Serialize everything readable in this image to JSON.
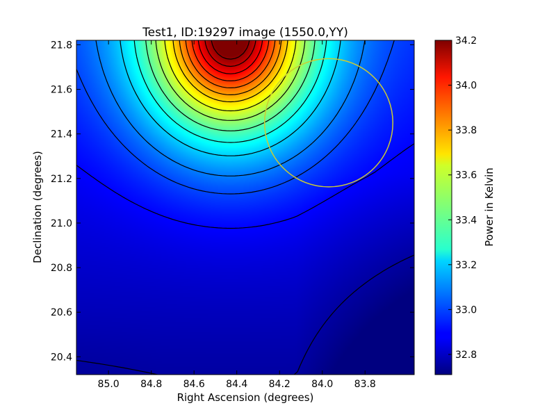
{
  "chart_data": {
    "type": "heatmap",
    "title": "Test1, ID:19297 image (1550.0,YY)",
    "xlabel": "Right Ascension (degrees)",
    "ylabel": "Declination (degrees)",
    "colorbar_label": "Power in Kelvin",
    "colormap": "jet",
    "xlim": [
      85.15,
      83.57
    ],
    "ylim": [
      20.32,
      21.82
    ],
    "clim": [
      32.71,
      34.2
    ],
    "x_ticks": [
      85.0,
      84.8,
      84.6,
      84.4,
      84.2,
      84.0,
      83.8
    ],
    "x_tick_labels": [
      "85.0",
      "84.8",
      "84.6",
      "84.4",
      "84.2",
      "84.0",
      "83.8"
    ],
    "y_ticks": [
      20.4,
      20.6,
      20.8,
      21.0,
      21.2,
      21.4,
      21.6,
      21.8
    ],
    "y_tick_labels": [
      "20.4",
      "20.6",
      "20.8",
      "21.0",
      "21.2",
      "21.4",
      "21.6",
      "21.8"
    ],
    "colorbar_ticks": [
      32.8,
      33.0,
      33.2,
      33.4,
      33.6,
      33.8,
      34.0,
      34.2
    ],
    "colorbar_tick_labels": [
      "32.8",
      "33.0",
      "33.2",
      "33.4",
      "33.6",
      "33.8",
      "34.0",
      "34.2"
    ],
    "peak": {
      "ra": 84.43,
      "dec": 21.83,
      "value": 34.2
    },
    "contour_levels": [
      32.76,
      32.9,
      33.0,
      33.08,
      33.2,
      33.3,
      33.4,
      33.5,
      33.6,
      33.7,
      33.78,
      33.86,
      33.94,
      34.02,
      34.1,
      34.17
    ],
    "circle": {
      "ra_center": 83.97,
      "dec_center": 21.45,
      "radius_deg": 0.3,
      "color": "#cccc33"
    },
    "grid": false
  }
}
